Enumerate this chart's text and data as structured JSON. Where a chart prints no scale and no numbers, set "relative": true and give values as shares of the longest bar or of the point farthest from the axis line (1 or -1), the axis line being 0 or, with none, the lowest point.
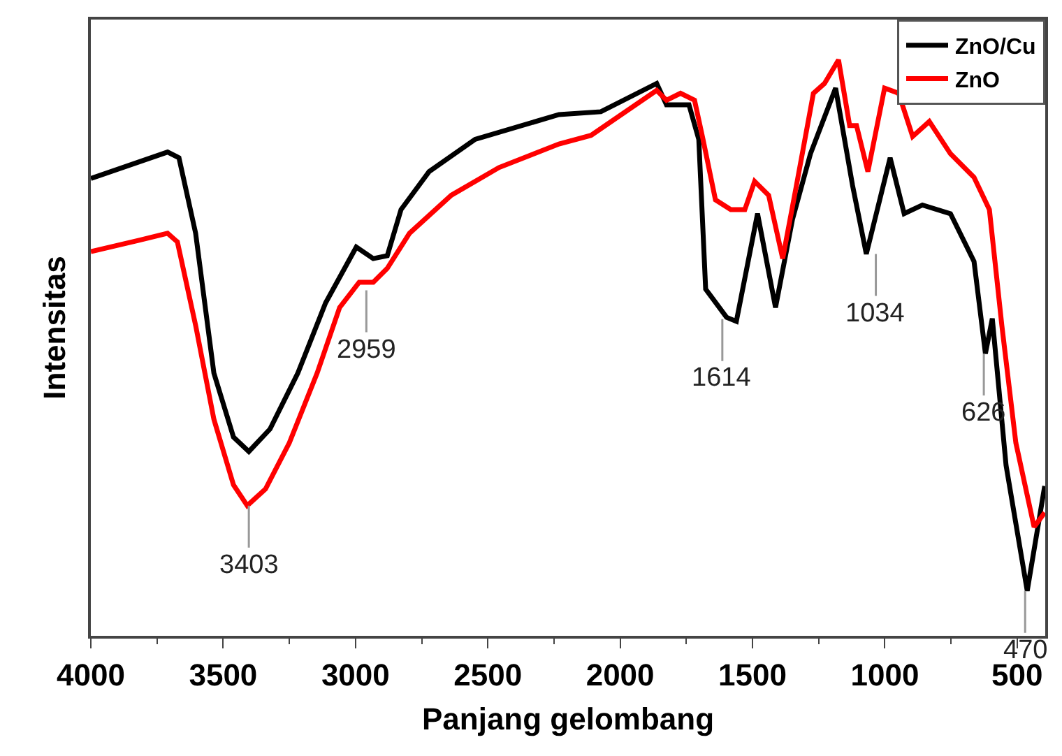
{
  "chart_data": {
    "type": "line",
    "relative": true,
    "xlabel": "Panjang gelombang",
    "ylabel": "Intensitas",
    "xlim": [
      4000,
      394
    ],
    "xticks": [
      4000,
      3500,
      3000,
      2500,
      2000,
      1500,
      1000,
      500
    ],
    "legend": "top right",
    "grid": false,
    "marker": "none",
    "line_style": "solid",
    "series": [
      {
        "name": "ZnO/Cu",
        "color": "#000000",
        "x": [
          4000,
          3710,
          3667,
          3604,
          3535,
          3461,
          3403,
          3323,
          3218,
          3113,
          2997,
          2933,
          2880,
          2828,
          2722,
          2548,
          2231,
          2073,
          1862,
          1825,
          1740,
          1703,
          1677,
          1598,
          1561,
          1481,
          1413,
          1349,
          1281,
          1186,
          1122,
          1070,
          980,
          927,
          858,
          752,
          663,
          620,
          594,
          542,
          462,
          396
        ],
        "values": [
          0.794,
          0.84,
          0.83,
          0.699,
          0.456,
          0.345,
          0.32,
          0.359,
          0.456,
          0.578,
          0.675,
          0.655,
          0.66,
          0.74,
          0.806,
          0.862,
          0.905,
          0.91,
          0.959,
          0.922,
          0.922,
          0.862,
          0.602,
          0.553,
          0.546,
          0.733,
          0.57,
          0.723,
          0.837,
          0.951,
          0.782,
          0.663,
          0.83,
          0.733,
          0.748,
          0.733,
          0.65,
          0.49,
          0.551,
          0.296,
          0.078,
          0.26
        ]
      },
      {
        "name": "ZnO",
        "color": "#ff0000",
        "x": [
          4000,
          3815,
          3710,
          3673,
          3604,
          3535,
          3461,
          3409,
          3340,
          3250,
          3145,
          3060,
          2986,
          2933,
          2880,
          2796,
          2638,
          2458,
          2231,
          2110,
          1862,
          1825,
          1772,
          1719,
          1687,
          1640,
          1582,
          1529,
          1492,
          1439,
          1386,
          1334,
          1270,
          1228,
          1175,
          1133,
          1107,
          1064,
          1001,
          948,
          895,
          832,
          752,
          663,
          605,
          558,
          505,
          436,
          396
        ],
        "values": [
          0.667,
          0.687,
          0.699,
          0.684,
          0.539,
          0.376,
          0.262,
          0.226,
          0.255,
          0.335,
          0.456,
          0.57,
          0.614,
          0.614,
          0.638,
          0.699,
          0.765,
          0.813,
          0.854,
          0.869,
          0.947,
          0.93,
          0.942,
          0.93,
          0.862,
          0.757,
          0.74,
          0.74,
          0.789,
          0.765,
          0.655,
          0.782,
          0.942,
          0.959,
          1,
          0.886,
          0.886,
          0.806,
          0.951,
          0.942,
          0.867,
          0.893,
          0.837,
          0.796,
          0.74,
          0.539,
          0.335,
          0.189,
          0.214
        ]
      }
    ],
    "annotations": [
      {
        "text": "3403",
        "x": 3403,
        "y": 0.226
      },
      {
        "text": "2959",
        "x": 2959,
        "y": 0.6
      },
      {
        "text": "1614",
        "x": 1614,
        "y": 0.55
      },
      {
        "text": "1034",
        "x": 1034,
        "y": 0.663
      },
      {
        "text": "626",
        "x": 626,
        "y": 0.49
      },
      {
        "text": "470",
        "x": 470,
        "y": 0.078
      }
    ]
  }
}
